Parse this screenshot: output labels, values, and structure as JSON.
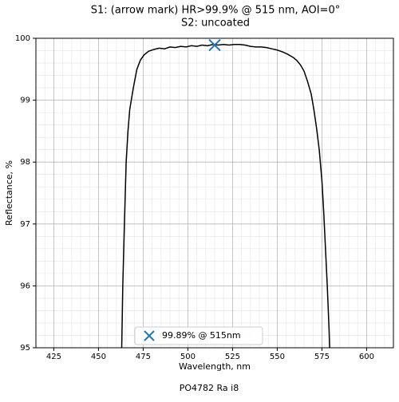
{
  "chart_data": {
    "type": "line",
    "title": "S1: (arrow mark) HR>99.9% @ 515 nm, AOI=0°",
    "subtitle": "S2: uncoated",
    "xlabel": "Wavelength, nm",
    "ylabel": "Reflectance, %",
    "footer": "PO4782 Ra i8",
    "xlim": [
      415,
      615
    ],
    "ylim": [
      95,
      100
    ],
    "xticks": [
      425,
      450,
      475,
      500,
      525,
      550,
      575,
      600
    ],
    "yticks": [
      95,
      96,
      97,
      98,
      99,
      100
    ],
    "grid": true,
    "xminor": 5,
    "yminor": 0.2,
    "x": [
      463,
      463.6,
      464.5,
      465.5,
      466.5,
      467.5,
      469.5,
      471.5,
      473.5,
      475.5,
      478,
      481,
      484,
      487,
      490,
      493,
      496,
      499,
      502,
      505,
      508,
      511,
      514,
      517,
      520,
      523,
      526,
      529,
      532,
      535,
      538,
      541,
      544,
      547,
      550,
      553,
      556,
      559,
      561,
      563,
      565,
      567,
      569,
      570.5,
      572,
      573.5,
      575,
      576,
      577,
      578,
      579,
      579.3
    ],
    "series": [
      {
        "color": "#000000",
        "values": [
          95.0,
          96.0,
          97.0,
          98.0,
          98.5,
          98.85,
          99.2,
          99.5,
          99.65,
          99.73,
          99.79,
          99.82,
          99.84,
          99.83,
          99.86,
          99.85,
          99.87,
          99.86,
          99.88,
          99.87,
          99.89,
          99.88,
          99.9,
          99.89,
          99.9,
          99.89,
          99.9,
          99.9,
          99.89,
          99.87,
          99.86,
          99.86,
          99.85,
          99.83,
          99.81,
          99.78,
          99.74,
          99.69,
          99.64,
          99.57,
          99.47,
          99.3,
          99.1,
          98.85,
          98.55,
          98.2,
          97.7,
          97.2,
          96.6,
          96.0,
          95.3,
          95.0
        ]
      }
    ],
    "markers": [
      {
        "name": "99.89% @ 515nm",
        "x": 515,
        "y": 99.89,
        "color": "#1f77b4"
      }
    ],
    "legend": "lower center"
  }
}
